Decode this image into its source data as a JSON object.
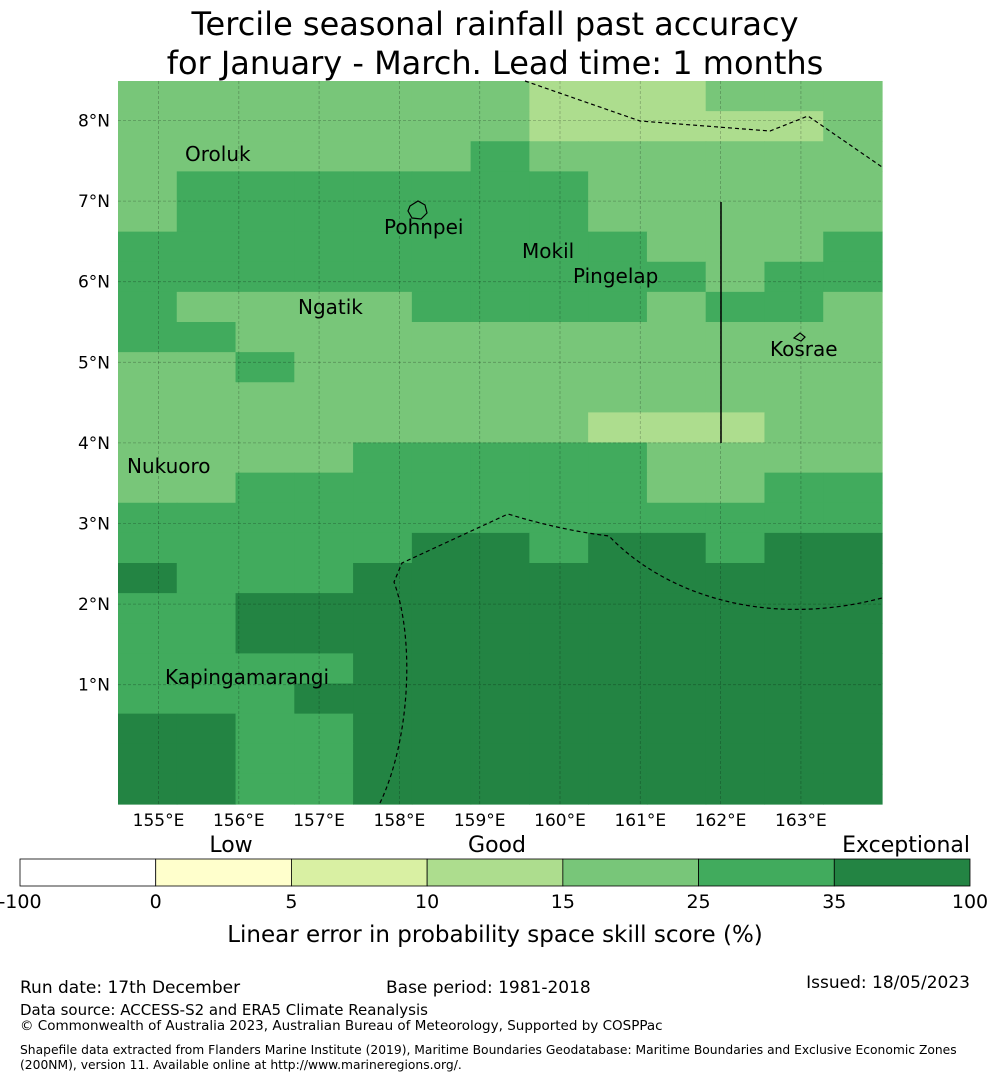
{
  "title": {
    "line1": "Tercile seasonal rainfall past accuracy",
    "line2": "for January - March. Lead time: 1 months"
  },
  "map": {
    "lat_ticks": [
      "8°N",
      "7°N",
      "6°N",
      "5°N",
      "4°N",
      "3°N",
      "2°N",
      "1°N"
    ],
    "lon_ticks": [
      "155°E",
      "156°E",
      "157°E",
      "158°E",
      "159°E",
      "160°E",
      "161°E",
      "162°E",
      "163°E"
    ],
    "places": [
      "Oroluk",
      "Pohnpei",
      "Mokil",
      "Pingelap",
      "Ngatik",
      "Kosrae",
      "Nukuoro",
      "Kapingamarangi"
    ],
    "grid_classes": [
      "3333333222333",
      "3333333222223",
      "3333334333333",
      "3444444433333",
      "3444444433333",
      "4444444443334",
      "4444444444344",
      "4333344443443",
      "4433333333333",
      "3343333333333",
      "3333333333333",
      "3333333322233",
      "3333444443333",
      "3344444443344",
      "4444444444444",
      "4444455455455",
      "5444555555555",
      "4455555555555",
      "4455555555555",
      "4444555555555",
      "4445555555555",
      "5544555555555",
      "5544555555555",
      "5544555555555"
    ]
  },
  "legend": {
    "categories": [
      "Low",
      "Good",
      "Exceptional"
    ],
    "ticks": [
      "-100",
      "0",
      "5",
      "10",
      "15",
      "25",
      "35",
      "100"
    ],
    "colors": [
      "#ffffff",
      "#ffffcc",
      "#d9f0a3",
      "#addd8e",
      "#78c679",
      "#41ab5d",
      "#238443"
    ],
    "title": "Linear error in probability space skill score (%)"
  },
  "footer": {
    "run_date": "Run date: 17th December",
    "base_period": "Base period: 1981-2018",
    "issued": "Issued: 18/05/2023",
    "data_source": "Data source: ACCESS-S2 and ERA5 Climate Reanalysis",
    "copyright": "© Commonwealth of Australia 2023, Australian Bureau of Meteorology, Supported by COSPPac",
    "shapefile": "Shapefile data extracted from Flanders Marine Institute (2019), Maritime Boundaries Geodatabase: Maritime Boundaries and Exclusive Economic Zones (200NM), version 11. Available online at http://www.marineregions.org/."
  }
}
